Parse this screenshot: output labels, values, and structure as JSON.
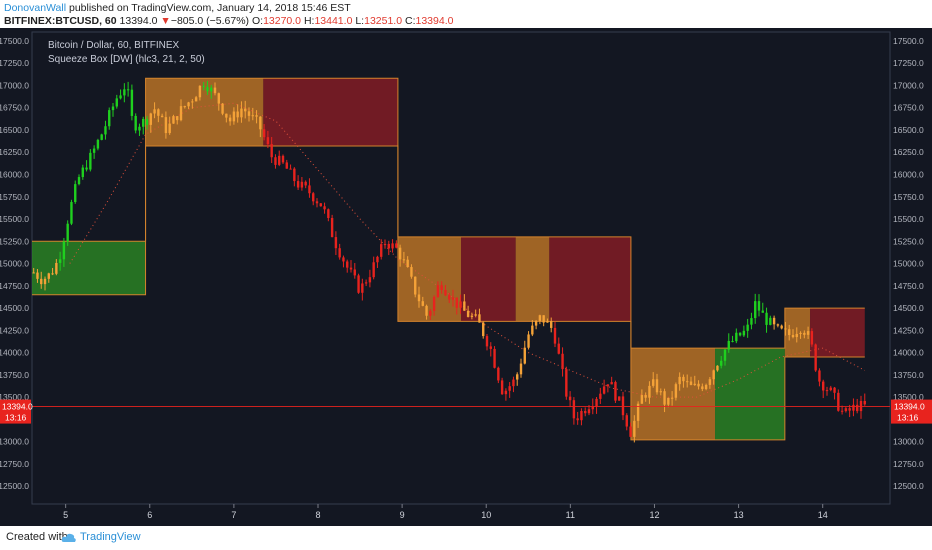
{
  "header": {
    "author": "DonovanWall",
    "published": " published on TradingView.com, January 14, 2018 15:46 EST",
    "symbol": "BITFINEX:BTCUSD, 60",
    "last": "13394.0",
    "arrow": "▼",
    "change": "−805.0 (−5.67%)",
    "o_label": "O:",
    "o_value": "13270.0",
    "h_label": "H:",
    "h_value": "13441.0",
    "l_label": "L:",
    "l_value": "13251.0",
    "c_label": "C:",
    "c_value": "13394.0"
  },
  "legend": {
    "title": "Bitcoin / Dollar, 60, BITFINEX",
    "indicator": "Squeeze Box [DW] (hlc3, 21, 2, 50)"
  },
  "footer": {
    "created_with": "Created with",
    "brand": "TradingView"
  },
  "colors": {
    "background": "#131722",
    "bull": "#1fd01f",
    "bear": "#e8231e",
    "neutral": "#f4a238",
    "box_orange": "#c77a26",
    "box_red": "#8c1c25",
    "box_green": "#2b8a24",
    "price_line": "#e8231e"
  },
  "chart_data": {
    "type": "candlestick",
    "title": "Bitcoin / Dollar, 60, BITFINEX",
    "indicator": "Squeeze Box [DW] (hlc3, 21, 2, 50)",
    "x_ticks": [
      "5",
      "6",
      "7",
      "8",
      "9",
      "10",
      "11",
      "12",
      "13",
      "14"
    ],
    "y_ticks": [
      12500,
      12750,
      13000,
      13250,
      13500,
      13750,
      14000,
      14250,
      14500,
      14750,
      15000,
      15250,
      15500,
      15750,
      16000,
      16250,
      16500,
      16750,
      17000,
      17250,
      17500
    ],
    "ylim": [
      12300,
      17600
    ],
    "x_range": [
      4.6,
      14.8
    ],
    "last_price": 13394.0,
    "last_time_label": "13:16",
    "price_path": [
      [
        4.62,
        14900
      ],
      [
        4.72,
        14820
      ],
      [
        4.82,
        14880
      ],
      [
        4.92,
        15050
      ],
      [
        5.05,
        15600
      ],
      [
        5.15,
        15950
      ],
      [
        5.3,
        16200
      ],
      [
        5.45,
        16500
      ],
      [
        5.6,
        16850
      ],
      [
        5.72,
        17020
      ],
      [
        5.8,
        16550
      ],
      [
        5.95,
        16600
      ],
      [
        6.05,
        16750
      ],
      [
        6.2,
        16500
      ],
      [
        6.35,
        16700
      ],
      [
        6.5,
        16850
      ],
      [
        6.65,
        17050
      ],
      [
        6.8,
        16850
      ],
      [
        6.95,
        16600
      ],
      [
        7.1,
        16750
      ],
      [
        7.3,
        16550
      ],
      [
        7.45,
        16200
      ],
      [
        7.6,
        16100
      ],
      [
        7.75,
        15900
      ],
      [
        7.9,
        15800
      ],
      [
        8.05,
        15650
      ],
      [
        8.2,
        15250
      ],
      [
        8.35,
        14950
      ],
      [
        8.5,
        14700
      ],
      [
        8.65,
        14950
      ],
      [
        8.8,
        15250
      ],
      [
        8.95,
        15150
      ],
      [
        9.05,
        14950
      ],
      [
        9.15,
        14700
      ],
      [
        9.3,
        14400
      ],
      [
        9.45,
        14800
      ],
      [
        9.6,
        14600
      ],
      [
        9.75,
        14450
      ],
      [
        9.9,
        14350
      ],
      [
        10.05,
        14050
      ],
      [
        10.2,
        13550
      ],
      [
        10.35,
        13700
      ],
      [
        10.5,
        14200
      ],
      [
        10.65,
        14400
      ],
      [
        10.8,
        14250
      ],
      [
        10.95,
        13550
      ],
      [
        11.05,
        13250
      ],
      [
        11.15,
        13350
      ],
      [
        11.3,
        13500
      ],
      [
        11.45,
        13700
      ],
      [
        11.6,
        13400
      ],
      [
        11.72,
        13100
      ],
      [
        11.85,
        13500
      ],
      [
        12.0,
        13650
      ],
      [
        12.15,
        13400
      ],
      [
        12.3,
        13700
      ],
      [
        12.45,
        13600
      ],
      [
        12.6,
        13650
      ],
      [
        12.75,
        13900
      ],
      [
        12.85,
        14050
      ],
      [
        12.95,
        14150
      ],
      [
        13.1,
        14250
      ],
      [
        13.2,
        14550
      ],
      [
        13.3,
        14400
      ],
      [
        13.45,
        14250
      ],
      [
        13.6,
        14200
      ],
      [
        13.75,
        14300
      ],
      [
        13.85,
        14150
      ],
      [
        13.95,
        13700
      ],
      [
        14.1,
        13550
      ],
      [
        14.25,
        13300
      ],
      [
        14.4,
        13400
      ],
      [
        14.5,
        13394
      ]
    ],
    "trend_segments": [
      {
        "from": 4.6,
        "to": 4.9,
        "trend": "neutral"
      },
      {
        "from": 4.9,
        "to": 6.0,
        "trend": "bull"
      },
      {
        "from": 6.0,
        "to": 6.6,
        "trend": "neutral"
      },
      {
        "from": 6.6,
        "to": 6.75,
        "trend": "bull"
      },
      {
        "from": 6.75,
        "to": 7.35,
        "trend": "neutral"
      },
      {
        "from": 7.35,
        "to": 8.95,
        "trend": "bear"
      },
      {
        "from": 8.95,
        "to": 9.3,
        "trend": "neutral"
      },
      {
        "from": 9.3,
        "to": 9.7,
        "trend": "bear"
      },
      {
        "from": 9.7,
        "to": 10.0,
        "trend": "neutral"
      },
      {
        "from": 10.0,
        "to": 10.35,
        "trend": "bear"
      },
      {
        "from": 10.35,
        "to": 10.8,
        "trend": "neutral"
      },
      {
        "from": 10.8,
        "to": 11.72,
        "trend": "bear"
      },
      {
        "from": 11.72,
        "to": 12.75,
        "trend": "neutral"
      },
      {
        "from": 12.75,
        "to": 13.4,
        "trend": "bull"
      },
      {
        "from": 13.4,
        "to": 13.85,
        "trend": "neutral"
      },
      {
        "from": 13.85,
        "to": 14.8,
        "trend": "bear"
      }
    ],
    "boxes": [
      {
        "x0": 4.6,
        "x1": 5.95,
        "hi": 15250,
        "lo": 14650,
        "color": "box_green"
      },
      {
        "x0": 5.95,
        "x1": 7.35,
        "hi": 17080,
        "lo": 16320,
        "color": "box_orange"
      },
      {
        "x0": 7.35,
        "x1": 8.95,
        "hi": 17080,
        "lo": 16320,
        "color": "box_red"
      },
      {
        "x0": 8.95,
        "x1": 9.7,
        "hi": 15300,
        "lo": 14350,
        "color": "box_orange"
      },
      {
        "x0": 9.7,
        "x1": 10.35,
        "hi": 15300,
        "lo": 14350,
        "color": "box_red"
      },
      {
        "x0": 10.35,
        "x1": 10.75,
        "hi": 15300,
        "lo": 14350,
        "color": "box_orange"
      },
      {
        "x0": 10.75,
        "x1": 11.72,
        "hi": 15300,
        "lo": 14350,
        "color": "box_red"
      },
      {
        "x0": 11.72,
        "x1": 12.72,
        "hi": 14050,
        "lo": 13020,
        "color": "box_orange"
      },
      {
        "x0": 12.72,
        "x1": 13.55,
        "hi": 14050,
        "lo": 13020,
        "color": "box_green"
      },
      {
        "x0": 13.55,
        "x1": 13.85,
        "hi": 14500,
        "lo": 13950,
        "color": "box_orange"
      },
      {
        "x0": 13.85,
        "x1": 14.5,
        "hi": 14500,
        "lo": 13950,
        "color": "box_red"
      }
    ],
    "basis_line": [
      [
        5.05,
        15000
      ],
      [
        5.5,
        15700
      ],
      [
        5.95,
        16450
      ],
      [
        6.5,
        16750
      ],
      [
        7.0,
        16800
      ],
      [
        7.5,
        16600
      ],
      [
        8.0,
        16050
      ],
      [
        8.5,
        15500
      ],
      [
        8.95,
        15050
      ],
      [
        9.5,
        14700
      ],
      [
        10.0,
        14300
      ],
      [
        10.5,
        14000
      ],
      [
        11.0,
        13800
      ],
      [
        11.5,
        13600
      ],
      [
        12.0,
        13500
      ],
      [
        12.5,
        13500
      ],
      [
        13.0,
        13700
      ],
      [
        13.5,
        13950
      ],
      [
        14.0,
        14050
      ],
      [
        14.5,
        13800
      ]
    ]
  }
}
